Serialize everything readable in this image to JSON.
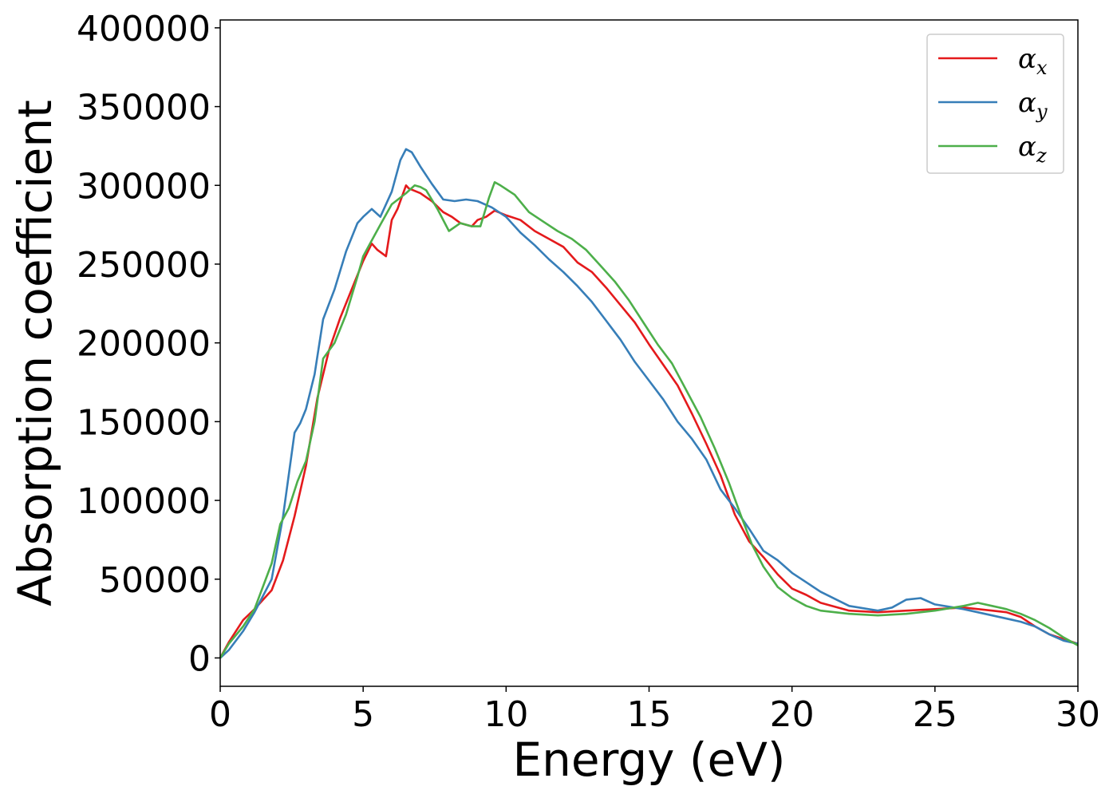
{
  "chart_data": {
    "type": "line",
    "title": "",
    "xlabel": "Energy (eV)",
    "ylabel": "Absorption coefficient",
    "xlim": [
      0,
      30
    ],
    "ylim": [
      -18000,
      405000
    ],
    "xticks": [
      0,
      5,
      10,
      15,
      20,
      25,
      30
    ],
    "yticks": [
      0,
      50000,
      100000,
      150000,
      200000,
      250000,
      300000,
      350000,
      400000
    ],
    "grid": false,
    "legend_position": "top-right",
    "series": [
      {
        "name": "α_x",
        "symbol": "α",
        "subscript": "x",
        "color": "#e41a1c",
        "x": [
          0,
          0.3,
          0.8,
          1.2,
          1.8,
          2.2,
          2.6,
          3.0,
          3.4,
          3.8,
          4.2,
          4.6,
          5.0,
          5.3,
          5.5,
          5.8,
          6.0,
          6.2,
          6.5,
          6.6,
          7.0,
          7.4,
          7.8,
          8.1,
          8.4,
          8.8,
          9.0,
          9.3,
          9.6,
          10.0,
          10.5,
          11.0,
          11.5,
          12.0,
          12.5,
          13.0,
          13.5,
          14.0,
          14.5,
          15.0,
          15.5,
          16.0,
          16.5,
          17.0,
          17.5,
          18.0,
          18.5,
          19.0,
          19.5,
          20.0,
          20.5,
          21.0,
          22.0,
          23.0,
          24.0,
          25.0,
          26.0,
          27.0,
          27.5,
          28.0,
          28.5,
          29.0,
          29.5,
          30.0
        ],
        "y": [
          0,
          10000,
          24000,
          31000,
          43000,
          62000,
          90000,
          122000,
          165000,
          195000,
          216000,
          234000,
          252000,
          263000,
          259000,
          255000,
          278000,
          285000,
          300000,
          298000,
          295000,
          290000,
          283000,
          280000,
          276000,
          274000,
          278000,
          280000,
          284000,
          281000,
          278000,
          271000,
          266000,
          261000,
          251000,
          245000,
          235000,
          224000,
          213000,
          199000,
          186000,
          173000,
          155000,
          136000,
          116000,
          91000,
          74000,
          64000,
          53000,
          44000,
          40000,
          35000,
          30000,
          29000,
          30000,
          31000,
          32000,
          30000,
          29000,
          26000,
          20000,
          15000,
          12000,
          9000
        ]
      },
      {
        "name": "α_y",
        "symbol": "α",
        "subscript": "y",
        "color": "#377eb8",
        "x": [
          0,
          0.3,
          0.8,
          1.2,
          1.8,
          2.2,
          2.6,
          2.8,
          3.0,
          3.3,
          3.6,
          4.0,
          4.4,
          4.8,
          5.0,
          5.3,
          5.6,
          6.0,
          6.3,
          6.5,
          6.7,
          7.0,
          7.4,
          7.8,
          8.2,
          8.6,
          9.0,
          9.5,
          10.0,
          10.5,
          11.0,
          11.5,
          12.0,
          12.5,
          13.0,
          13.5,
          14.0,
          14.5,
          15.0,
          15.5,
          16.0,
          16.5,
          17.0,
          17.5,
          18.0,
          18.5,
          19.0,
          19.5,
          20.0,
          20.5,
          21.0,
          22.0,
          23.0,
          23.5,
          24.0,
          24.5,
          25.0,
          26.0,
          27.0,
          28.0,
          28.5,
          29.0,
          29.5,
          30.0
        ],
        "y": [
          0,
          5000,
          17000,
          29000,
          50000,
          90000,
          143000,
          149000,
          158000,
          180000,
          215000,
          234000,
          258000,
          276000,
          280000,
          285000,
          280000,
          296000,
          316000,
          323000,
          321000,
          312000,
          301000,
          291000,
          290000,
          291000,
          290000,
          286000,
          280000,
          270000,
          262000,
          253000,
          245000,
          236000,
          226000,
          214000,
          202000,
          188000,
          176000,
          164000,
          150000,
          139000,
          126000,
          107000,
          95000,
          82000,
          68000,
          62000,
          54000,
          48000,
          42000,
          33000,
          30000,
          32000,
          37000,
          38000,
          34000,
          31000,
          27000,
          23000,
          20000,
          15000,
          11000,
          9000
        ]
      },
      {
        "name": "α_z",
        "symbol": "α",
        "subscript": "z",
        "color": "#4daf4a",
        "x": [
          0,
          0.3,
          0.8,
          1.2,
          1.8,
          2.1,
          2.4,
          2.7,
          3.0,
          3.3,
          3.6,
          4.0,
          4.4,
          4.8,
          5.0,
          5.3,
          5.6,
          6.0,
          6.5,
          6.8,
          7.0,
          7.2,
          7.6,
          8.0,
          8.4,
          8.8,
          9.1,
          9.4,
          9.6,
          9.8,
          10.3,
          10.8,
          11.3,
          11.8,
          12.3,
          12.8,
          13.3,
          13.8,
          14.3,
          14.8,
          15.3,
          15.8,
          16.3,
          16.8,
          17.3,
          17.8,
          18.2,
          18.6,
          19.0,
          19.5,
          20.0,
          20.5,
          21.0,
          22.0,
          23.0,
          24.0,
          25.0,
          26.0,
          26.5,
          27.0,
          27.5,
          28.0,
          28.5,
          29.0,
          29.5,
          30.0
        ],
        "y": [
          0,
          9000,
          20000,
          31000,
          60000,
          85000,
          95000,
          112000,
          125000,
          150000,
          190000,
          200000,
          218000,
          242000,
          255000,
          265000,
          275000,
          288000,
          295000,
          300000,
          299000,
          297000,
          285000,
          271000,
          276000,
          274000,
          274000,
          292000,
          302000,
          300000,
          294000,
          283000,
          277000,
          271000,
          266000,
          259000,
          249000,
          239000,
          227000,
          213000,
          199000,
          187000,
          170000,
          153000,
          133000,
          111000,
          91000,
          72000,
          58000,
          45000,
          38000,
          33000,
          30000,
          28000,
          27000,
          28000,
          30000,
          33000,
          35000,
          33000,
          31000,
          28000,
          24000,
          19000,
          13000,
          8000
        ]
      }
    ]
  }
}
